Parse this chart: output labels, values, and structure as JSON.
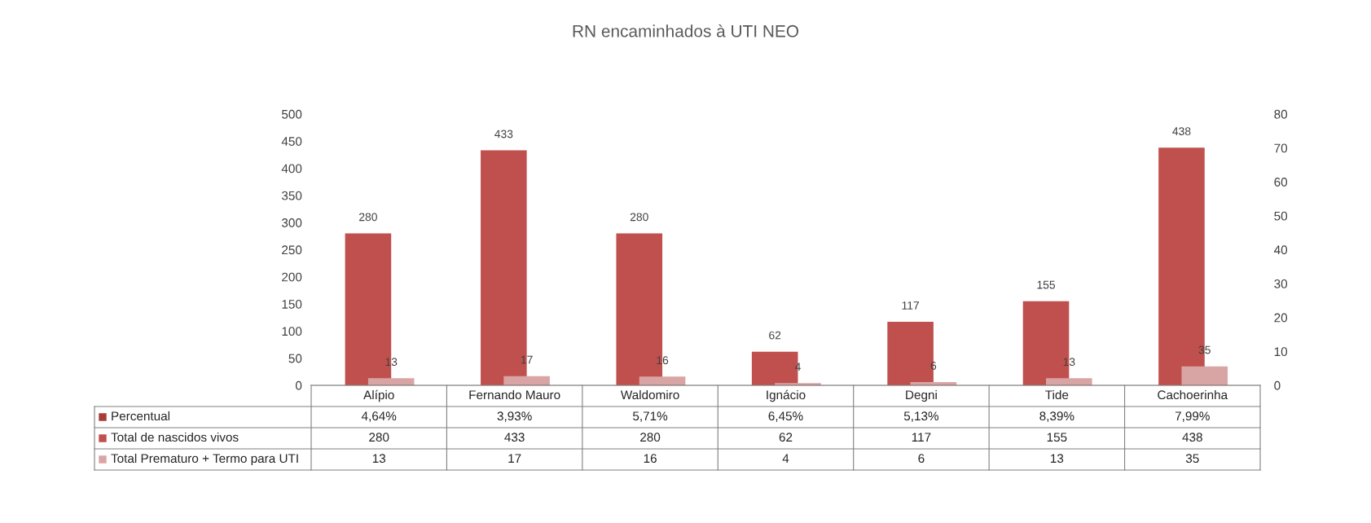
{
  "chart_data": {
    "type": "bar",
    "title": "RN encaminhados à UTI NEO",
    "categories": [
      "Alípio",
      "Fernando Mauro",
      "Waldomiro",
      "Ignácio",
      "Degni",
      "Tide",
      "Cachoerinha"
    ],
    "series": [
      {
        "name": "Percentual",
        "color": "#a83c3a",
        "axis": "y2",
        "values": [
          0.0464,
          0.0393,
          0.0571,
          0.0645,
          0.0513,
          0.0839,
          0.0799
        ],
        "value_labels": [
          "4,64%",
          "3,93%",
          "5,71%",
          "6,45%",
          "5,13%",
          "8,39%",
          "7,99%"
        ]
      },
      {
        "name": "Total de nascidos vivos",
        "color": "#c0504d",
        "values": [
          280,
          433,
          280,
          62,
          117,
          155,
          438
        ],
        "value_labels": [
          "280",
          "433",
          "280",
          "62",
          "117",
          "155",
          "438"
        ]
      },
      {
        "name": "Total Prematuro + Termo para UTI",
        "color": "#d9a5a4",
        "values": [
          13,
          17,
          16,
          4,
          6,
          13,
          35
        ],
        "value_labels": [
          "13",
          "17",
          "16",
          "4",
          "6",
          "13",
          "35"
        ]
      }
    ],
    "ylim": [
      0,
      500
    ],
    "yticks": [
      0,
      50,
      100,
      150,
      200,
      250,
      300,
      350,
      400,
      450,
      500
    ],
    "y2lim": [
      0,
      80
    ],
    "y2ticks": [
      0,
      10,
      20,
      30,
      40,
      50,
      60,
      70,
      80
    ],
    "grid": false,
    "legend": "bottom left"
  }
}
